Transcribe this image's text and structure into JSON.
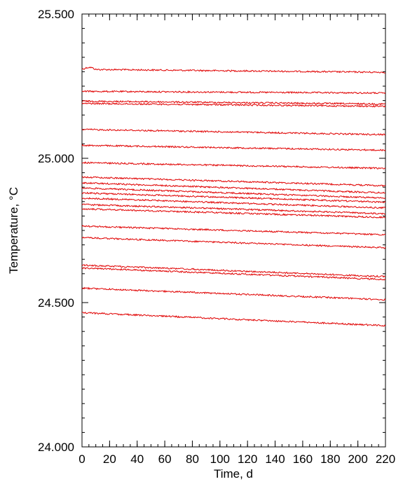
{
  "chart_data": {
    "type": "line",
    "xlabel": "Time, d",
    "ylabel": "Temperature, °C",
    "xlim": [
      0,
      220
    ],
    "ylim": [
      24.0,
      25.5
    ],
    "x_ticks": [
      0,
      20,
      40,
      60,
      80,
      100,
      120,
      140,
      160,
      180,
      200,
      220
    ],
    "x_tick_labels": [
      "0",
      "20",
      "40",
      "60",
      "80",
      "100",
      "120",
      "140",
      "160",
      "180",
      "200",
      "220"
    ],
    "y_ticks": [
      24.0,
      24.5,
      25.0,
      25.5
    ],
    "y_tick_labels": [
      "24.000",
      "24.500",
      "25.000",
      "25.500"
    ],
    "x_minor_step": 5,
    "y_minor_step": 0.05,
    "grid": false,
    "legend": "none",
    "line_color": "#e00000",
    "series": [
      {
        "x": [
          0,
          5,
          220
        ],
        "values": [
          25.31,
          25.308,
          25.298
        ]
      },
      {
        "x": [
          0,
          220
        ],
        "values": [
          25.232,
          25.226
        ]
      },
      {
        "x": [
          0,
          220
        ],
        "values": [
          25.198,
          25.188
        ]
      },
      {
        "x": [
          0,
          220
        ],
        "values": [
          25.19,
          25.18
        ]
      },
      {
        "x": [
          0,
          220
        ],
        "values": [
          25.1,
          25.082
        ]
      },
      {
        "x": [
          0,
          220
        ],
        "values": [
          25.045,
          25.028
        ]
      },
      {
        "x": [
          0,
          220
        ],
        "values": [
          24.985,
          24.965
        ]
      },
      {
        "x": [
          0,
          220
        ],
        "values": [
          24.935,
          24.905
        ]
      },
      {
        "x": [
          0,
          220
        ],
        "values": [
          24.915,
          24.88
        ]
      },
      {
        "x": [
          0,
          220
        ],
        "values": [
          24.897,
          24.862
        ]
      },
      {
        "x": [
          0,
          220
        ],
        "values": [
          24.88,
          24.848
        ]
      },
      {
        "x": [
          0,
          220
        ],
        "values": [
          24.862,
          24.828
        ]
      },
      {
        "x": [
          0,
          220
        ],
        "values": [
          24.84,
          24.808
        ]
      },
      {
        "x": [
          0,
          220
        ],
        "values": [
          24.825,
          24.795
        ]
      },
      {
        "x": [
          0,
          220
        ],
        "values": [
          24.765,
          24.735
        ]
      },
      {
        "x": [
          0,
          220
        ],
        "values": [
          24.725,
          24.69
        ]
      },
      {
        "x": [
          0,
          220
        ],
        "values": [
          24.63,
          24.59
        ]
      },
      {
        "x": [
          0,
          220
        ],
        "values": [
          24.62,
          24.58
        ]
      },
      {
        "x": [
          0,
          220
        ],
        "values": [
          24.55,
          24.51
        ]
      },
      {
        "x": [
          0,
          220
        ],
        "values": [
          24.465,
          24.42
        ]
      }
    ]
  }
}
